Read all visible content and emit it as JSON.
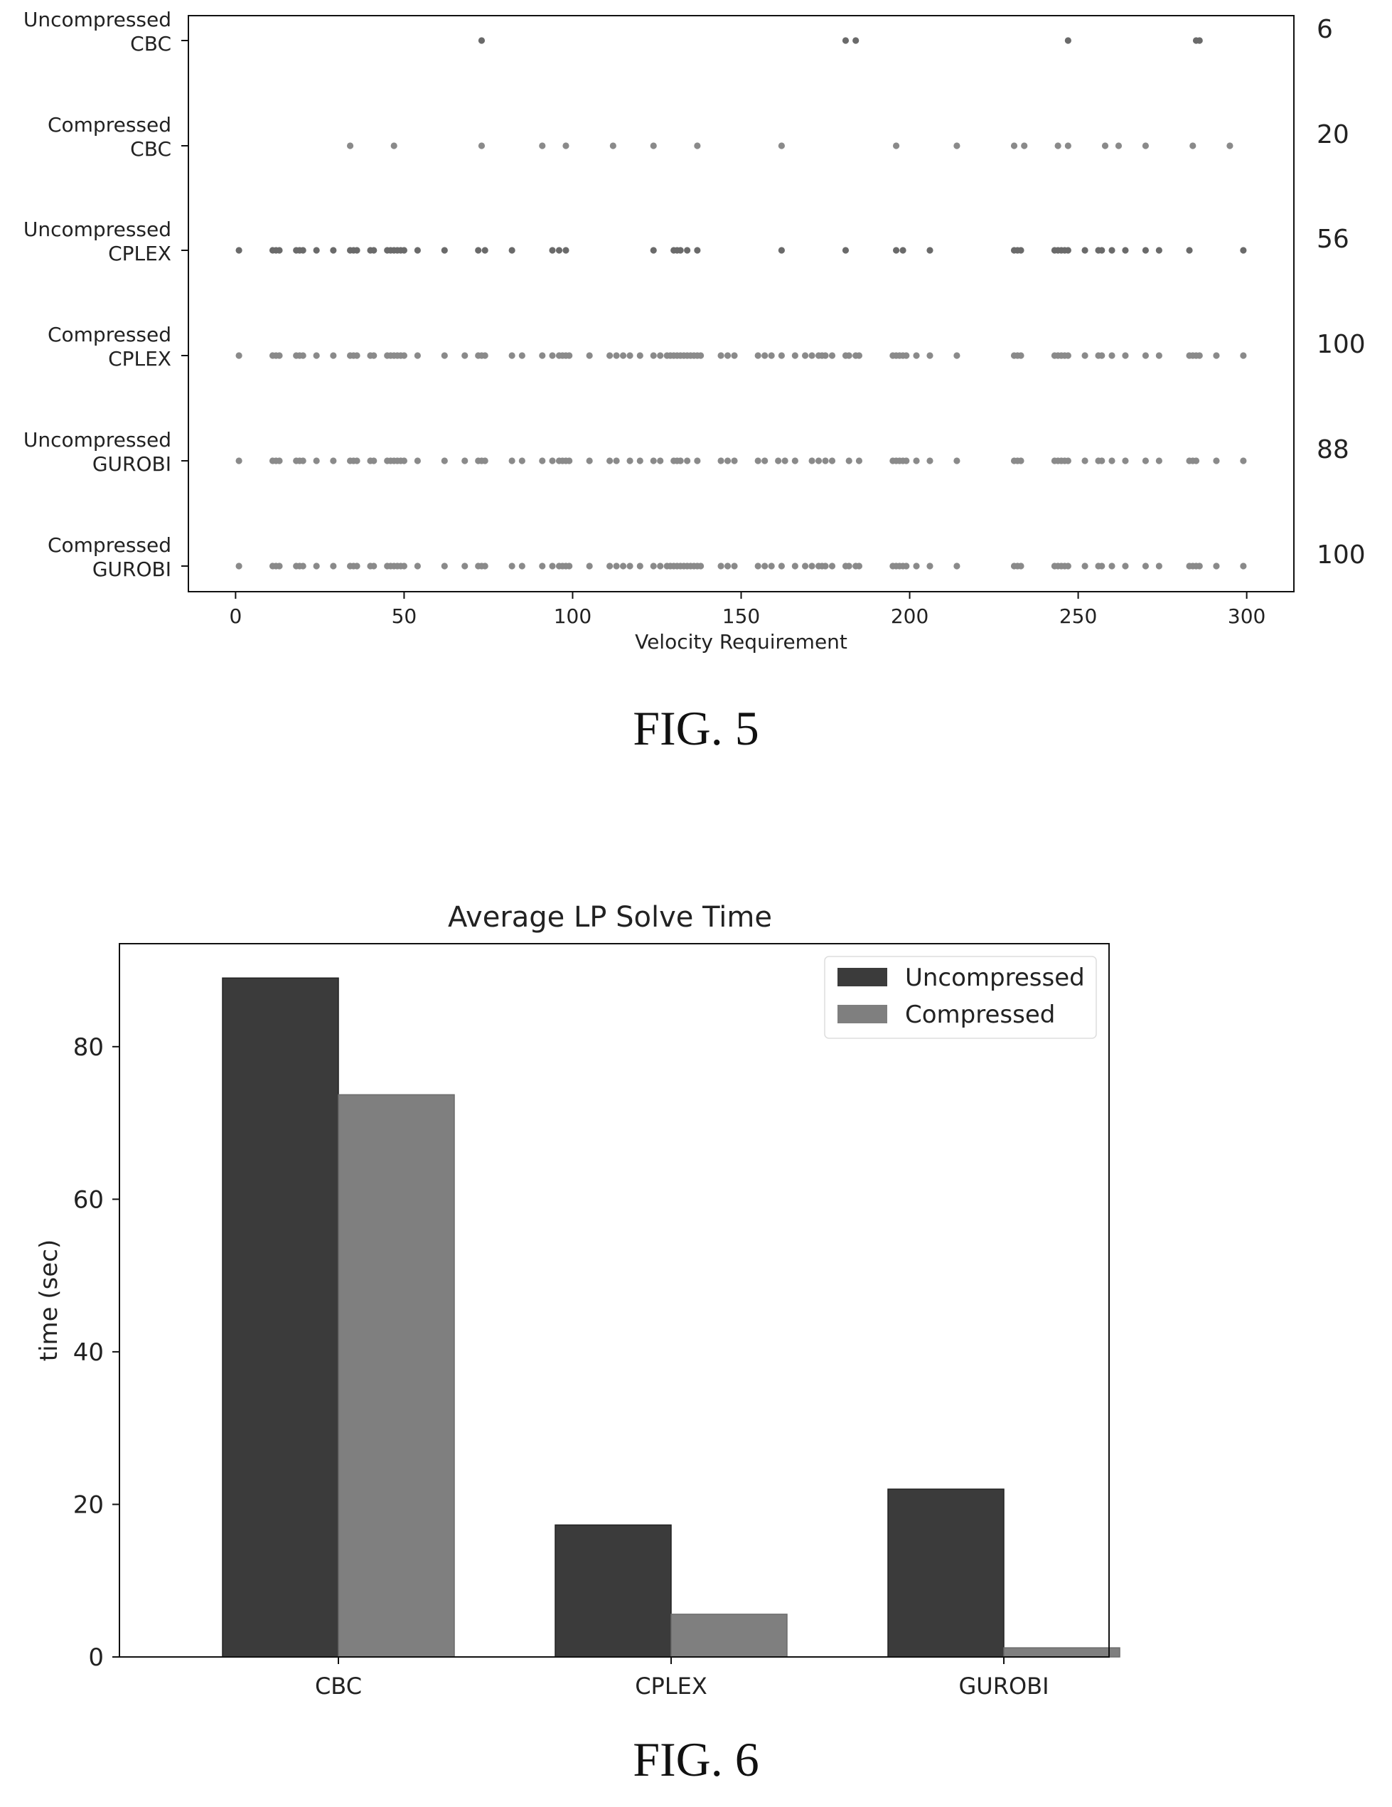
{
  "figures": {
    "fig5_label": "FIG. 5",
    "fig6_label": "FIG. 6"
  },
  "colors": {
    "dots": "#6a6a6a",
    "dots_light": "#8a8a8a",
    "uncompressed_bar": "#3b3b3b",
    "compressed_bar": "#7f7f7f"
  },
  "chart_data": [
    {
      "type": "scatter",
      "title": "",
      "xlabel": "Velocity Requirement",
      "ylabel": "",
      "xlim": [
        -14,
        314
      ],
      "xticks": [
        "0",
        "50",
        "100",
        "150",
        "200",
        "250",
        "300"
      ],
      "grid": false,
      "rows": [
        {
          "label_line1": "Uncompressed",
          "label_line2": "CBC",
          "count": "6",
          "x": [
            73,
            181,
            184,
            247,
            285,
            286
          ]
        },
        {
          "label_line1": "Compressed",
          "label_line2": "CBC",
          "count": "20",
          "x": [
            34,
            47,
            73,
            91,
            98,
            112,
            124,
            137,
            162,
            196,
            214,
            231,
            234,
            244,
            247,
            258,
            262,
            270,
            284,
            295
          ]
        },
        {
          "label_line1": "Uncompressed",
          "label_line2": "CPLEX",
          "count": "56",
          "x": [
            1,
            11,
            12,
            13,
            18,
            19,
            20,
            24,
            29,
            34,
            35,
            36,
            40,
            41,
            45,
            46,
            47,
            48,
            49,
            50,
            54,
            62,
            72,
            74,
            82,
            94,
            96,
            98,
            124,
            130,
            131,
            132,
            134,
            137,
            162,
            181,
            196,
            198,
            206,
            231,
            232,
            233,
            243,
            244,
            245,
            246,
            247,
            252,
            256,
            257,
            260,
            264,
            270,
            274,
            283,
            299
          ]
        },
        {
          "label_line1": "Compressed",
          "label_line2": "CPLEX",
          "count": "100",
          "x": [
            1,
            11,
            12,
            13,
            18,
            19,
            20,
            24,
            29,
            34,
            35,
            36,
            40,
            41,
            45,
            46,
            47,
            48,
            49,
            50,
            54,
            62,
            68,
            72,
            73,
            74,
            82,
            85,
            91,
            94,
            96,
            97,
            98,
            99,
            105,
            111,
            113,
            115,
            117,
            120,
            124,
            126,
            128,
            129,
            130,
            131,
            132,
            133,
            134,
            135,
            136,
            137,
            138,
            144,
            146,
            148,
            155,
            157,
            159,
            162,
            166,
            169,
            171,
            173,
            174,
            175,
            177,
            181,
            182,
            184,
            185,
            195,
            196,
            197,
            198,
            199,
            202,
            206,
            214,
            231,
            232,
            233,
            243,
            244,
            245,
            246,
            247,
            252,
            256,
            257,
            260,
            264,
            270,
            274,
            283,
            284,
            285,
            286,
            291,
            299
          ]
        },
        {
          "label_line1": "Uncompressed",
          "label_line2": "GUROBI",
          "count": "88",
          "x": [
            1,
            11,
            12,
            13,
            18,
            19,
            20,
            24,
            29,
            34,
            35,
            36,
            40,
            41,
            45,
            46,
            47,
            48,
            49,
            50,
            54,
            62,
            68,
            72,
            73,
            74,
            82,
            85,
            91,
            94,
            96,
            97,
            98,
            99,
            105,
            111,
            113,
            117,
            120,
            124,
            126,
            130,
            131,
            132,
            134,
            137,
            144,
            146,
            148,
            155,
            157,
            161,
            163,
            166,
            171,
            173,
            175,
            177,
            182,
            185,
            195,
            196,
            197,
            198,
            199,
            202,
            206,
            214,
            231,
            232,
            233,
            243,
            244,
            245,
            246,
            247,
            252,
            256,
            257,
            260,
            264,
            270,
            274,
            283,
            284,
            285,
            291,
            299
          ]
        },
        {
          "label_line1": "Compressed",
          "label_line2": "GUROBI",
          "count": "100",
          "x": [
            1,
            11,
            12,
            13,
            18,
            19,
            20,
            24,
            29,
            34,
            35,
            36,
            40,
            41,
            45,
            46,
            47,
            48,
            49,
            50,
            54,
            62,
            68,
            72,
            73,
            74,
            82,
            85,
            91,
            94,
            96,
            97,
            98,
            99,
            105,
            111,
            113,
            115,
            117,
            120,
            124,
            126,
            128,
            129,
            130,
            131,
            132,
            133,
            134,
            135,
            136,
            137,
            138,
            144,
            146,
            148,
            155,
            157,
            159,
            162,
            166,
            169,
            171,
            173,
            174,
            175,
            177,
            181,
            182,
            184,
            185,
            195,
            196,
            197,
            198,
            199,
            202,
            206,
            214,
            231,
            232,
            233,
            243,
            244,
            245,
            246,
            247,
            252,
            256,
            257,
            260,
            264,
            270,
            274,
            283,
            284,
            285,
            286,
            291,
            299
          ]
        }
      ]
    },
    {
      "type": "bar",
      "title": "Average LP Solve Time",
      "xlabel": "",
      "ylabel": "time (sec)",
      "ylim": [
        0,
        93.5
      ],
      "yticks": [
        "0",
        "20",
        "40",
        "60",
        "80"
      ],
      "categories": [
        "CBC",
        "CPLEX",
        "GUROBI"
      ],
      "series": [
        {
          "name": "Uncompressed",
          "values": [
            89,
            17.3,
            22
          ]
        },
        {
          "name": "Compressed",
          "values": [
            73.7,
            5.6,
            1.2
          ]
        }
      ],
      "legend_position": "top-right",
      "grid": false
    }
  ]
}
